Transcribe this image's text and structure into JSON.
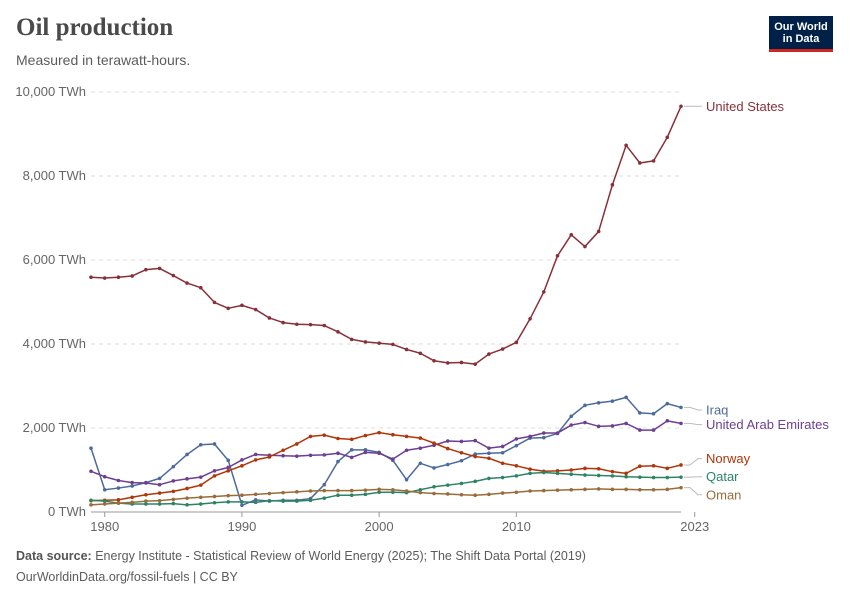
{
  "header": {
    "title": "Oil production",
    "subtitle": "Measured in terawatt-hours.",
    "logo_line1": "Our World",
    "logo_line2": "in Data"
  },
  "footer": {
    "source_label": "Data source:",
    "source_text": "Energy Institute - Statistical Review of World Energy (2025); The Shift Data Portal (2019)",
    "url": "OurWorldinData.org/fossil-fuels",
    "license": "CC BY"
  },
  "chart_data": {
    "type": "line",
    "title": "Oil production",
    "subtitle": "Measured in terawatt-hours.",
    "xlim": [
      1979,
      2023
    ],
    "ylim": [
      0,
      10000
    ],
    "y_ticks": [
      0,
      2000,
      4000,
      6000,
      8000,
      10000
    ],
    "y_tick_labels": [
      "0 TWh",
      "2,000 TWh",
      "4,000 TWh",
      "6,000 TWh",
      "8,000 TWh",
      "10,000 TWh"
    ],
    "x_ticks": [
      1980,
      1990,
      2000,
      2010,
      2023
    ],
    "x_tick_labels": [
      "1980",
      "1990",
      "2000",
      "2010",
      "2023"
    ],
    "grid": "horizontal dashed",
    "legend": "right, line-end labels",
    "x": [
      1979,
      1980,
      1981,
      1982,
      1983,
      1984,
      1985,
      1986,
      1987,
      1988,
      1989,
      1990,
      1991,
      1992,
      1993,
      1994,
      1995,
      1996,
      1997,
      1998,
      1999,
      2000,
      2001,
      2002,
      2003,
      2004,
      2005,
      2006,
      2007,
      2008,
      2009,
      2010,
      2011,
      2012,
      2013,
      2014,
      2015,
      2016,
      2017,
      2018,
      2019,
      2020,
      2021,
      2022,
      2023
    ],
    "series": [
      {
        "name": "United States",
        "color": "#883039",
        "values": [
          5590,
          5570,
          5590,
          5620,
          5770,
          5800,
          5630,
          5450,
          5340,
          4990,
          4850,
          4920,
          4820,
          4620,
          4510,
          4470,
          4460,
          4440,
          4290,
          4110,
          4050,
          4020,
          3990,
          3870,
          3780,
          3600,
          3550,
          3560,
          3520,
          3760,
          3880,
          4040,
          4600,
          5240,
          6100,
          6600,
          6320,
          6680,
          7790,
          8730,
          8310,
          8360,
          8920,
          9660,
          null
        ],
        "label_y": 9660
      },
      {
        "name": "Iraq",
        "color": "#4c6a9c",
        "values": [
          1520,
          530,
          570,
          620,
          700,
          800,
          1080,
          1370,
          1600,
          1620,
          1230,
          160,
          290,
          260,
          280,
          280,
          320,
          650,
          1200,
          1480,
          1480,
          1420,
          1230,
          770,
          1160,
          1050,
          1130,
          1220,
          1380,
          1400,
          1410,
          1580,
          1760,
          1770,
          1870,
          2280,
          2540,
          2600,
          2640,
          2730,
          2360,
          2340,
          2580,
          2490,
          null
        ],
        "label_y": 2430
      },
      {
        "name": "United Arab Emirates",
        "color": "#6d3e91",
        "values": [
          970,
          840,
          750,
          700,
          690,
          650,
          740,
          790,
          830,
          980,
          1060,
          1240,
          1370,
          1350,
          1340,
          1330,
          1350,
          1360,
          1400,
          1300,
          1420,
          1400,
          1260,
          1470,
          1520,
          1590,
          1690,
          1680,
          1700,
          1520,
          1560,
          1740,
          1800,
          1880,
          1880,
          2070,
          2130,
          2040,
          2050,
          2110,
          1950,
          1950,
          2170,
          2110,
          null
        ],
        "label_y": 2080
      },
      {
        "name": "Norway",
        "color": "#b13507",
        "values": [
          270,
          280,
          290,
          350,
          410,
          450,
          490,
          560,
          640,
          860,
          980,
          1100,
          1240,
          1310,
          1470,
          1620,
          1800,
          1830,
          1750,
          1730,
          1820,
          1890,
          1840,
          1800,
          1760,
          1640,
          1510,
          1410,
          1320,
          1280,
          1160,
          1100,
          1020,
          970,
          980,
          1000,
          1040,
          1030,
          960,
          920,
          1090,
          1100,
          1040,
          1120,
          null
        ],
        "label_y": 1270
      },
      {
        "name": "Qatar",
        "color": "#2c8465",
        "values": [
          280,
          260,
          210,
          190,
          190,
          190,
          200,
          170,
          190,
          220,
          240,
          240,
          230,
          270,
          260,
          260,
          280,
          330,
          400,
          400,
          420,
          470,
          470,
          460,
          530,
          600,
          640,
          680,
          730,
          800,
          820,
          860,
          920,
          940,
          920,
          900,
          880,
          870,
          860,
          840,
          830,
          820,
          820,
          830,
          null
        ],
        "label_y": 840
      },
      {
        "name": "Oman",
        "color": "#996d39",
        "values": [
          170,
          190,
          210,
          230,
          260,
          270,
          300,
          330,
          350,
          370,
          390,
          400,
          420,
          440,
          460,
          480,
          500,
          510,
          510,
          510,
          520,
          540,
          530,
          500,
          460,
          440,
          430,
          410,
          400,
          420,
          450,
          470,
          500,
          510,
          520,
          530,
          540,
          550,
          540,
          540,
          530,
          530,
          540,
          580,
          null
        ],
        "label_y": 410
      }
    ],
    "x_end": 2022
  }
}
